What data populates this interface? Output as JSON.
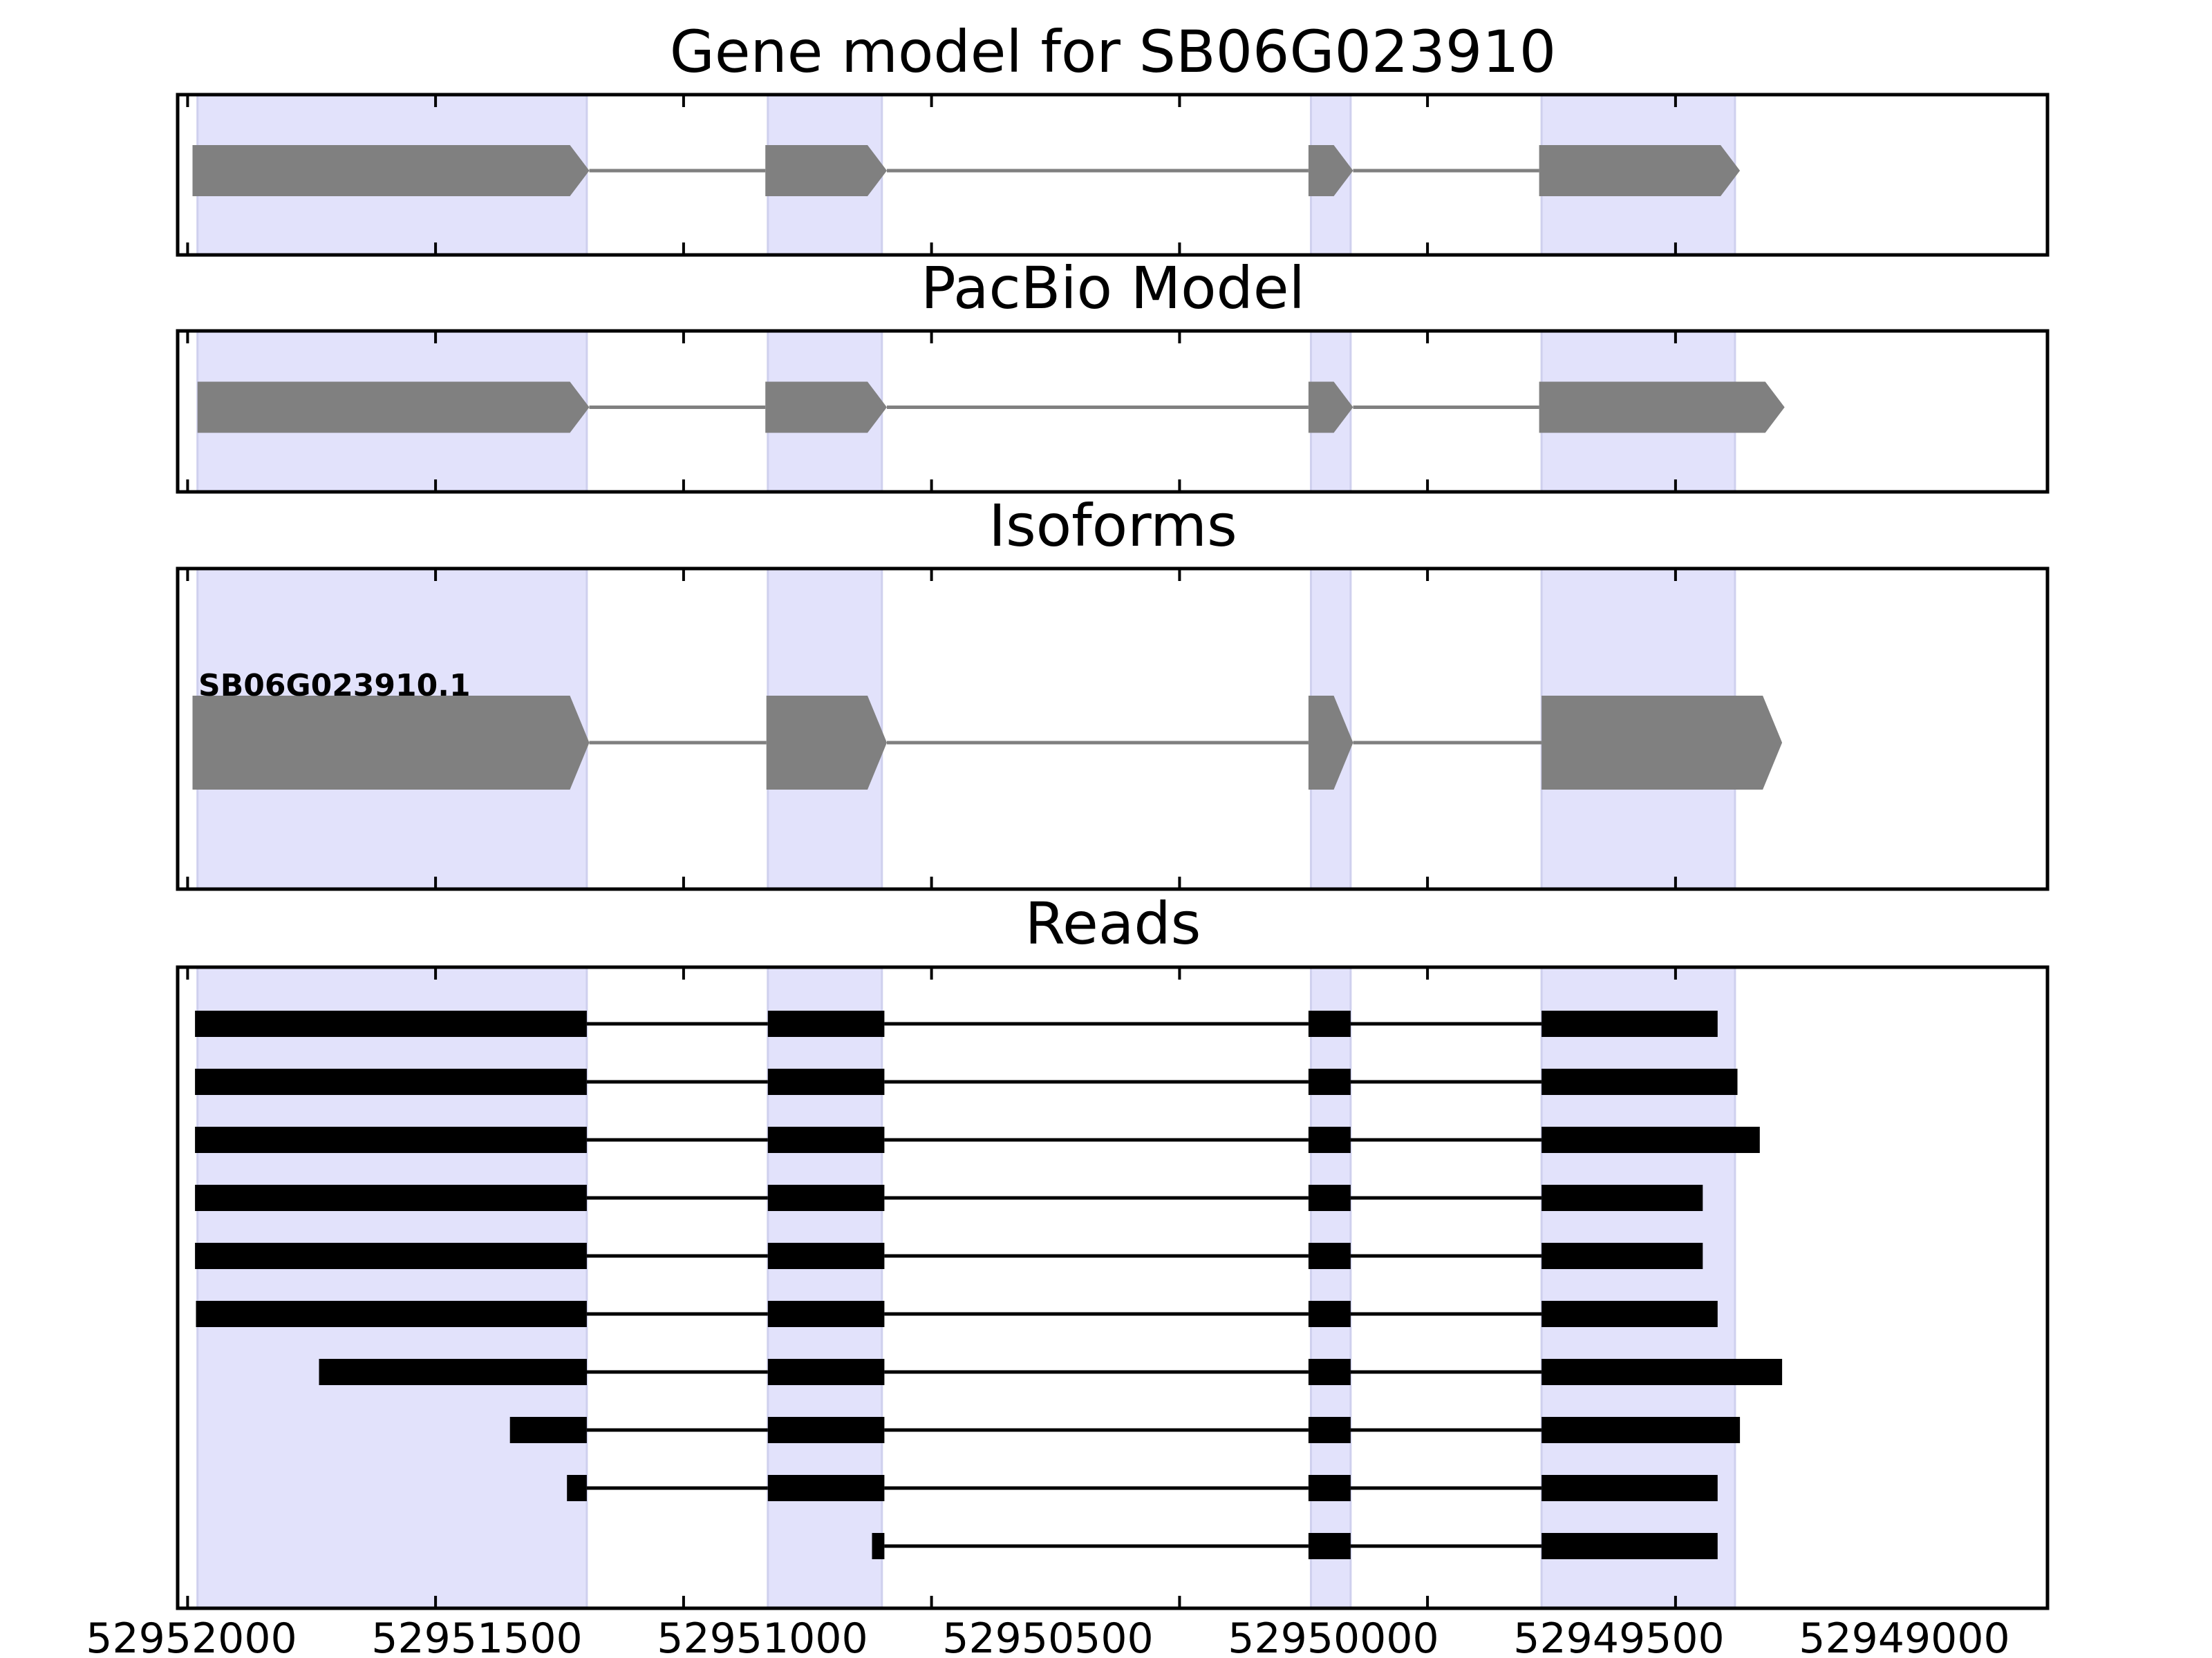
{
  "chart_data": {
    "type": "gene_structure",
    "x_axis": {
      "reversed": true,
      "range": [
        52952020,
        52948250
      ],
      "ticks": [
        52952000,
        52951500,
        52951000,
        52950500,
        52950000,
        52949500,
        52949000
      ],
      "tick_labels": [
        "52952000",
        "52951500",
        "52951000",
        "52950500",
        "52950000",
        "52949500",
        "52949000"
      ]
    },
    "highlight_color": "#e2e2fb",
    "exon_color": "#808080",
    "read_color": "#000000",
    "highlight_regions": [
      [
        52951980,
        52951195
      ],
      [
        52950830,
        52950600
      ],
      [
        52949735,
        52949655
      ],
      [
        52949270,
        52948880
      ]
    ],
    "panels": [
      {
        "title": "Gene model for SB06G023910",
        "kind": "model",
        "strand": "-",
        "exons": [
          [
            52951990,
            52951190
          ],
          [
            52950835,
            52950590
          ],
          [
            52949740,
            52949650
          ],
          [
            52949275,
            52948870
          ]
        ]
      },
      {
        "title": "PacBio Model",
        "kind": "model",
        "strand": "-",
        "exons": [
          [
            52951980,
            52951190
          ],
          [
            52950835,
            52950590
          ],
          [
            52949740,
            52949650
          ],
          [
            52949275,
            52948780
          ]
        ]
      },
      {
        "title": "Isoforms",
        "kind": "isoforms",
        "strand": "-",
        "isoforms": [
          {
            "label": "SB06G023910.1",
            "exons": [
              [
                52951990,
                52951190
              ],
              [
                52950833,
                52950590
              ],
              [
                52949740,
                52949650
              ],
              [
                52949270,
                52948785
              ]
            ]
          }
        ]
      },
      {
        "title": "Reads",
        "kind": "reads",
        "reads": [
          [
            [
              52951985,
              52951195
            ],
            [
              52950830,
              52950595
            ],
            [
              52949740,
              52949655
            ],
            [
              52949270,
              52948915
            ]
          ],
          [
            [
              52951985,
              52951195
            ],
            [
              52950830,
              52950595
            ],
            [
              52949740,
              52949655
            ],
            [
              52949270,
              52948875
            ]
          ],
          [
            [
              52951985,
              52951195
            ],
            [
              52950830,
              52950595
            ],
            [
              52949740,
              52949655
            ],
            [
              52949270,
              52948830
            ]
          ],
          [
            [
              52951985,
              52951195
            ],
            [
              52950830,
              52950595
            ],
            [
              52949740,
              52949655
            ],
            [
              52949270,
              52948945
            ]
          ],
          [
            [
              52951985,
              52951195
            ],
            [
              52950830,
              52950595
            ],
            [
              52949740,
              52949655
            ],
            [
              52949270,
              52948945
            ]
          ],
          [
            [
              52951983,
              52951195
            ],
            [
              52950830,
              52950595
            ],
            [
              52949740,
              52949655
            ],
            [
              52949270,
              52948915
            ]
          ],
          [
            [
              52951735,
              52951195
            ],
            [
              52950830,
              52950595
            ],
            [
              52949740,
              52949655
            ],
            [
              52949270,
              52948785
            ]
          ],
          [
            [
              52951350,
              52951195
            ],
            [
              52950830,
              52950595
            ],
            [
              52949740,
              52949655
            ],
            [
              52949270,
              52948870
            ]
          ],
          [
            [
              52951235,
              52951195
            ],
            [
              52950830,
              52950595
            ],
            [
              52949740,
              52949655
            ],
            [
              52949270,
              52948915
            ]
          ],
          [
            [
              52950620,
              52950595
            ],
            [
              52949740,
              52949655
            ],
            [
              52949270,
              52948915
            ]
          ]
        ]
      }
    ]
  }
}
